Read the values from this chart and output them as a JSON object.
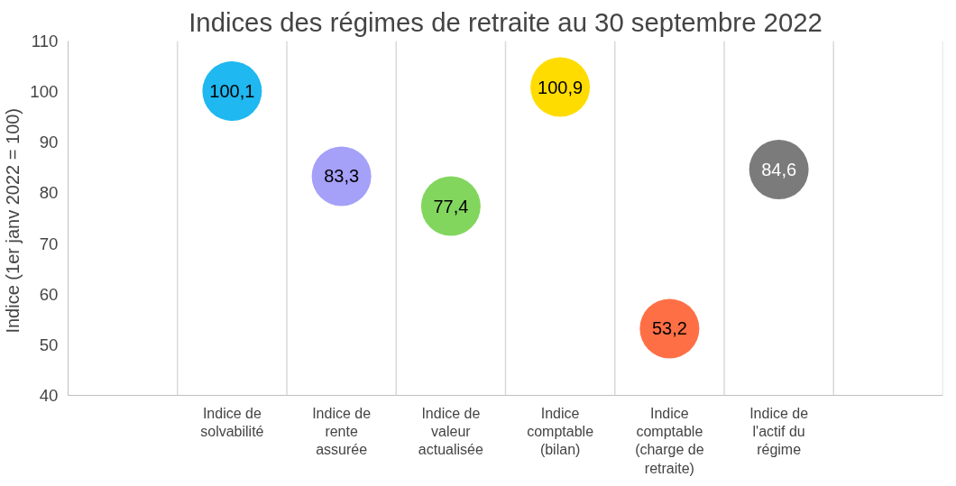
{
  "chart_data": {
    "type": "scatter",
    "title": "Indices des régimes de retraite au 30 septembre 2022",
    "ylabel": "Indice  (1er janv 2022 = 100)",
    "categories": [
      null,
      "Indice de solvabilité",
      "Indice de rente assurée",
      "Indice de valeur actualisée",
      "Indice comptable (bilan)",
      "Indice comptable (charge de retraite)",
      "Indice de l'actif du régime",
      null
    ],
    "values": [
      null,
      100.1,
      83.3,
      77.4,
      100.9,
      53.2,
      84.6,
      null
    ],
    "colors": [
      null,
      "#1fb8f0",
      "#a5a0f8",
      "#82d65e",
      "#ffdc00",
      "#ff6f45",
      "#7b7b7b",
      null
    ],
    "value_labels": [
      null,
      "100,1",
      "83,3",
      "77,4",
      "100,9",
      "53,2",
      "84,6",
      null
    ],
    "ylim": [
      40,
      110
    ],
    "yticks": [
      40,
      50,
      60,
      70,
      80,
      90,
      100,
      110
    ],
    "marker": "circle",
    "grid": "x"
  }
}
